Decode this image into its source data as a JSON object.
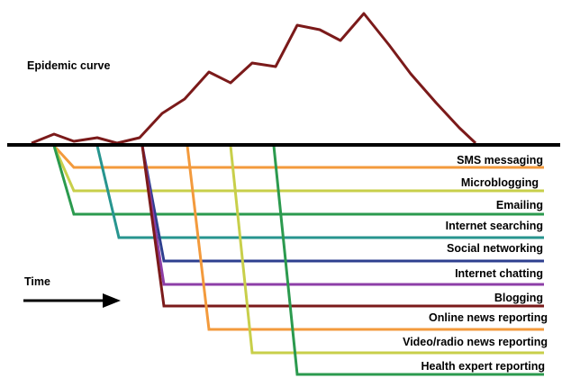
{
  "title": "Epidemic curve",
  "time_label": "Time",
  "channels": [
    {
      "name": "SMS messaging",
      "color": "#f39a3c"
    },
    {
      "name": "Microblogging",
      "color": "#c8cf4a"
    },
    {
      "name": "Emailing",
      "color": "#2b9a4e"
    },
    {
      "name": "Internet searching",
      "color": "#27958f"
    },
    {
      "name": "Social networking",
      "color": "#2e3f8f"
    },
    {
      "name": "Internet chatting",
      "color": "#8d3ea7"
    },
    {
      "name": "Blogging",
      "color": "#7b1a1a"
    },
    {
      "name": "Online news reporting",
      "color": "#f39a3c"
    },
    {
      "name": "Video/radio news reporting",
      "color": "#c8cf4a"
    },
    {
      "name": "Health expert reporting",
      "color": "#2b9a4e"
    }
  ],
  "curve_color": "#7b1a1a",
  "baseline_color": "#000000"
}
